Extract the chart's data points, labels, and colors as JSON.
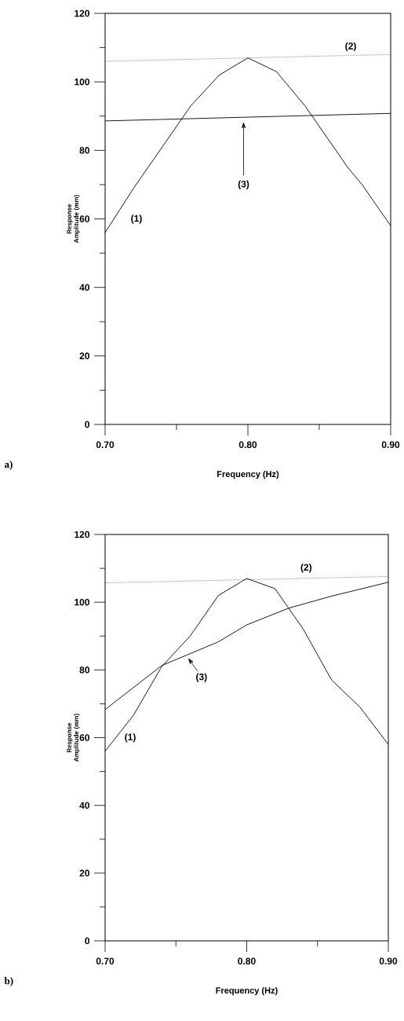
{
  "chart_data": [
    {
      "type": "line",
      "xlabel": "Frequency (Hz)",
      "ylabel": "Response Amplitude (mm)",
      "xlim": [
        0.7,
        0.9
      ],
      "ylim": [
        0,
        120
      ],
      "xticks": [
        {
          "value": 0.7,
          "label": "0.70"
        },
        {
          "value": 0.75,
          "label": null
        },
        {
          "value": 0.8,
          "label": "0.80"
        },
        {
          "value": 0.85,
          "label": null
        },
        {
          "value": 0.9,
          "label": "0.90"
        }
      ],
      "yticks": [
        0,
        {
          "value": 10,
          "label": null
        },
        20,
        {
          "value": 30,
          "label": null
        },
        40,
        {
          "value": 50,
          "label": null
        },
        60,
        {
          "value": 70,
          "label": null
        },
        80,
        {
          "value": 90,
          "label": null
        },
        100,
        {
          "value": 110,
          "label": null
        },
        120
      ],
      "series": [
        {
          "name": "(1)",
          "color": "#000000",
          "line_style": "solid",
          "x": [
            0.7,
            0.71,
            0.72,
            0.74,
            0.75,
            0.76,
            0.78,
            0.8,
            0.82,
            0.84,
            0.85,
            0.86,
            0.87,
            0.88,
            0.89,
            0.9
          ],
          "values": [
            56,
            62.5,
            69,
            81,
            87,
            93,
            102,
            107,
            103,
            93,
            87,
            81,
            75,
            70,
            64,
            58
          ]
        },
        {
          "name": "(2)",
          "color": "#000000",
          "line_style": "dotted",
          "x": [
            0.7,
            0.9
          ],
          "values": [
            106,
            108
          ]
        },
        {
          "name": "(3)",
          "color": "#000000",
          "line_style": "solid",
          "x": [
            0.7,
            0.9
          ],
          "values": [
            88.6,
            90.8
          ]
        }
      ],
      "annotations": [
        "a)"
      ]
    },
    {
      "type": "line",
      "xlabel": "Frequency (Hz)",
      "ylabel": "Response Amplitude (mm)",
      "xlim": [
        0.7,
        0.9
      ],
      "ylim": [
        0,
        120
      ],
      "xticks": [
        {
          "value": 0.7,
          "label": "0.70"
        },
        {
          "value": 0.75,
          "label": null
        },
        {
          "value": 0.8,
          "label": "0.80"
        },
        {
          "value": 0.85,
          "label": null
        },
        {
          "value": 0.9,
          "label": "0.90"
        }
      ],
      "yticks": [
        0,
        {
          "value": 10,
          "label": null
        },
        20,
        {
          "value": 30,
          "label": null
        },
        40,
        {
          "value": 50,
          "label": null
        },
        60,
        {
          "value": 70,
          "label": null
        },
        80,
        {
          "value": 90,
          "label": null
        },
        100,
        {
          "value": 110,
          "label": null
        },
        120
      ],
      "series": [
        {
          "name": "(1)",
          "color": "#000000",
          "line_style": "solid",
          "x": [
            0.7,
            0.72,
            0.74,
            0.76,
            0.78,
            0.8,
            0.82,
            0.83,
            0.84,
            0.86,
            0.88,
            0.9
          ],
          "values": [
            56,
            66.6,
            81,
            90,
            102,
            107,
            104,
            98,
            92,
            77,
            69,
            58
          ]
        },
        {
          "name": "(2)",
          "color": "#000000",
          "line_style": "dotted",
          "x": [
            0.7,
            0.9
          ],
          "values": [
            105.7,
            107.6
          ]
        },
        {
          "name": "(3)",
          "color": "#000000",
          "line_style": "solid",
          "x": [
            0.7,
            0.74,
            0.78,
            0.8,
            0.83,
            0.86,
            0.9
          ],
          "values": [
            68.3,
            81.3,
            88.3,
            93.3,
            98.3,
            101.8,
            105.9
          ]
        }
      ],
      "annotations": [
        "b)"
      ]
    }
  ]
}
